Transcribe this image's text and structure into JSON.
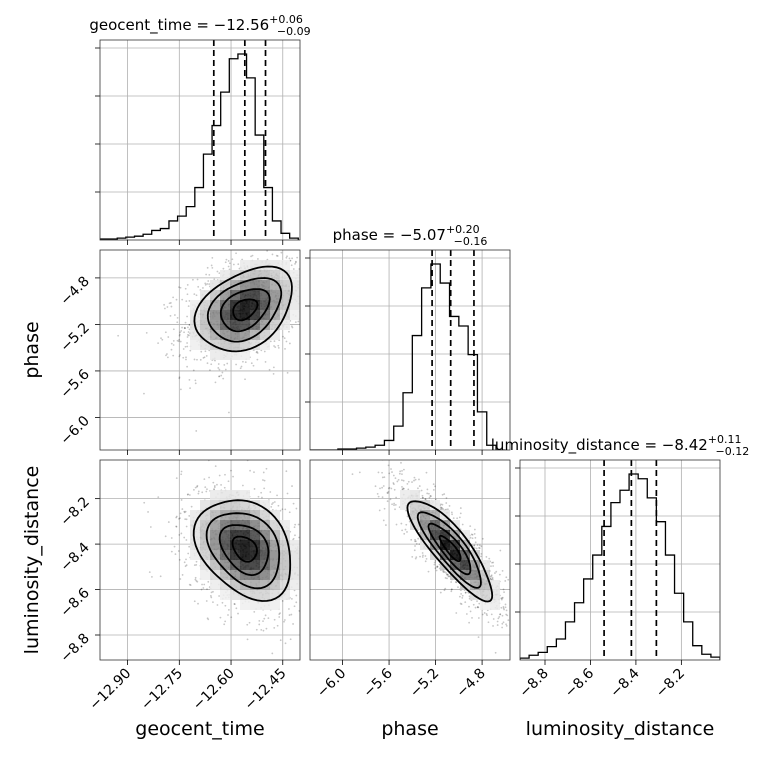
{
  "chart_data": {
    "type": "corner",
    "parameters": [
      "geocent_time",
      "phase",
      "luminosity_distance"
    ],
    "ranges": {
      "geocent_time": [
        -12.98,
        -12.4
      ],
      "phase": [
        -6.28,
        -4.56
      ],
      "luminosity_distance": [
        -8.91,
        -8.03
      ]
    },
    "grid": true,
    "titles": [
      {
        "param": "geocent_time",
        "prefix": "geocent_time = −12.56",
        "plus": "+0.06",
        "minus": "−0.09"
      },
      {
        "param": "phase",
        "prefix": "phase = −5.07",
        "plus": "+0.20",
        "minus": "−0.16"
      },
      {
        "param": "luminosity_distance",
        "prefix": "luminosity_distance = −8.42",
        "plus": "+0.11",
        "minus": "−0.12"
      }
    ],
    "axis_labels": {
      "x": [
        "geocent_time",
        "phase",
        "luminosity_distance"
      ],
      "y": [
        "phase",
        "luminosity_distance"
      ]
    },
    "ticks": {
      "geocent_time": [
        {
          "value": -12.9,
          "label": "−12.90"
        },
        {
          "value": -12.75,
          "label": "−12.75"
        },
        {
          "value": -12.6,
          "label": "−12.60"
        },
        {
          "value": -12.45,
          "label": "−12.45"
        }
      ],
      "phase": [
        {
          "value": -6.0,
          "label": "−6.0"
        },
        {
          "value": -5.6,
          "label": "−5.6"
        },
        {
          "value": -5.2,
          "label": "−5.2"
        },
        {
          "value": -4.8,
          "label": "−4.8"
        }
      ],
      "luminosity_distance": [
        {
          "value": -8.8,
          "label": "−8.8"
        },
        {
          "value": -8.6,
          "label": "−8.6"
        },
        {
          "value": -8.4,
          "label": "−8.4"
        },
        {
          "value": -8.2,
          "label": "−8.2"
        }
      ]
    },
    "quantiles": {
      "geocent_time": [
        -12.65,
        -12.56,
        -12.5
      ],
      "phase": [
        -5.23,
        -5.07,
        -4.87
      ],
      "luminosity_distance": [
        -8.54,
        -8.42,
        -8.31
      ]
    },
    "histograms": {
      "geocent_time": {
        "edges": [
          -12.98,
          -12.955,
          -12.93,
          -12.905,
          -12.88,
          -12.855,
          -12.83,
          -12.805,
          -12.78,
          -12.755,
          -12.73,
          -12.705,
          -12.68,
          -12.655,
          -12.63,
          -12.605,
          -12.58,
          -12.555,
          -12.53,
          -12.505,
          -12.48,
          -12.455,
          -12.43,
          -12.405
        ],
        "counts": [
          1,
          1,
          2,
          3,
          4,
          6,
          10,
          12,
          20,
          25,
          35,
          55,
          90,
          120,
          155,
          190,
          195,
          170,
          110,
          55,
          20,
          7,
          2
        ]
      },
      "phase": {
        "edges": [
          -6.28,
          -6.2,
          -6.12,
          -6.04,
          -5.96,
          -5.88,
          -5.8,
          -5.72,
          -5.64,
          -5.56,
          -5.48,
          -5.4,
          -5.32,
          -5.24,
          -5.16,
          -5.08,
          -5.0,
          -4.92,
          -4.84,
          -4.76,
          -4.68,
          -4.6
        ],
        "counts": [
          0,
          0,
          0,
          1,
          1,
          2,
          3,
          5,
          10,
          25,
          60,
          120,
          170,
          195,
          175,
          140,
          130,
          100,
          40,
          5,
          0
        ]
      },
      "luminosity_distance": {
        "edges": [
          -8.91,
          -8.87,
          -8.83,
          -8.79,
          -8.75,
          -8.71,
          -8.67,
          -8.63,
          -8.59,
          -8.55,
          -8.51,
          -8.47,
          -8.43,
          -8.39,
          -8.35,
          -8.31,
          -8.27,
          -8.23,
          -8.19,
          -8.15,
          -8.11,
          -8.07,
          -8.03
        ],
        "counts": [
          2,
          5,
          8,
          14,
          22,
          40,
          60,
          85,
          110,
          140,
          165,
          178,
          195,
          190,
          170,
          145,
          110,
          70,
          40,
          15,
          6,
          3
        ]
      }
    },
    "pairs": [
      {
        "x": "geocent_time",
        "y": "phase",
        "mean": [
          -12.56,
          -5.07
        ],
        "sd": [
          0.07,
          0.18
        ],
        "rho": 0.35,
        "points": 1400
      },
      {
        "x": "geocent_time",
        "y": "luminosity_distance",
        "mean": [
          -12.56,
          -8.42
        ],
        "sd": [
          0.07,
          0.11
        ],
        "rho": -0.3,
        "points": 1400
      },
      {
        "x": "phase",
        "y": "luminosity_distance",
        "mean": [
          -5.07,
          -8.42
        ],
        "sd": [
          0.18,
          0.11
        ],
        "rho": -0.85,
        "points": 1400
      }
    ],
    "contour_sigmas": [
      0.5,
      1.0,
      1.5,
      2.0
    ]
  }
}
